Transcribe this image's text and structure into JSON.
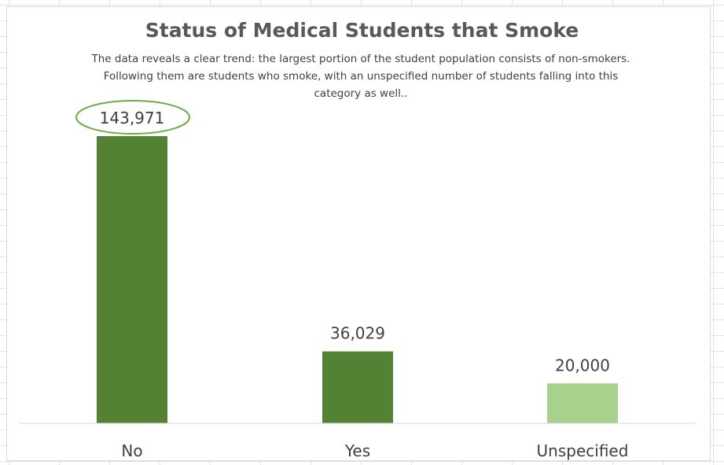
{
  "chart_data": {
    "type": "bar",
    "title": "Status of Medical Students that Smoke",
    "subtitle": "The data reveals a clear trend: the largest portion of the student population consists of non-smokers. Following them are students who smoke, with an unspecified number of students falling into this category as well..",
    "categories": [
      "No",
      "Yes",
      "Unspecified"
    ],
    "values": [
      143971,
      36029,
      20000
    ],
    "data_labels": [
      "143,971",
      "36,029",
      "20,000"
    ],
    "bar_colors": [
      "#548235",
      "#548235",
      "#a9d18e"
    ],
    "highlight_color": "#70ad47",
    "highlighted_category": "No",
    "ylim": [
      0,
      143971
    ],
    "grid": false,
    "legend": "none"
  }
}
